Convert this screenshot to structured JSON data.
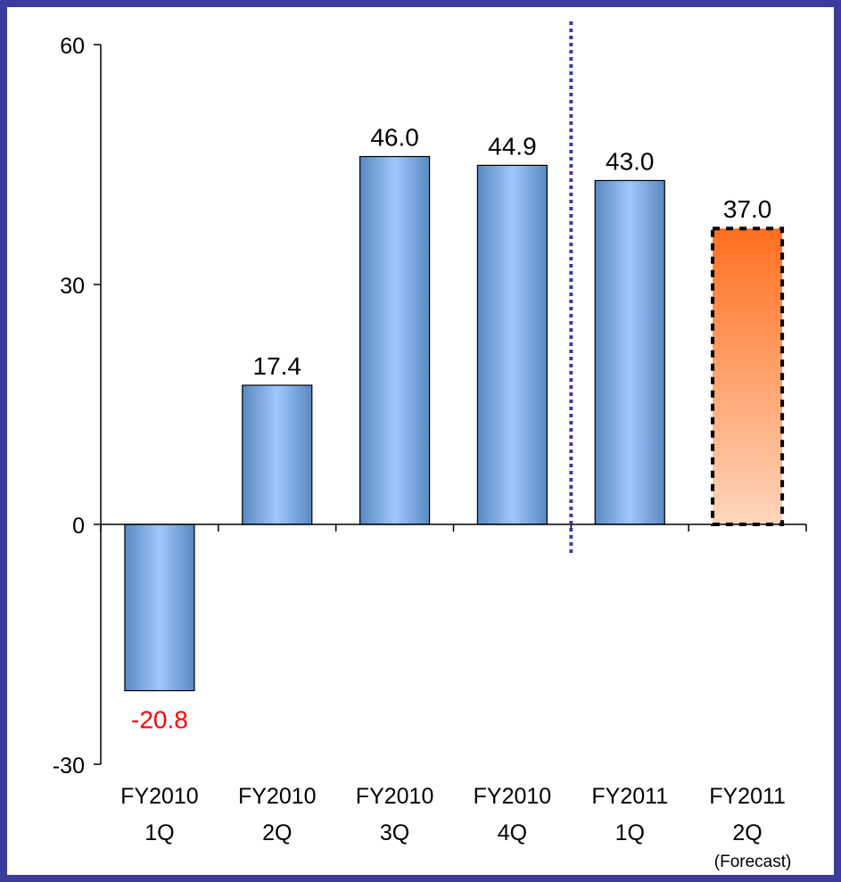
{
  "chart_data": {
    "type": "bar",
    "categories": [
      [
        "FY2010",
        "1Q"
      ],
      [
        "FY2010",
        "2Q"
      ],
      [
        "FY2010",
        "3Q"
      ],
      [
        "FY2010",
        "4Q"
      ],
      [
        "FY2011",
        "1Q"
      ],
      [
        "FY2011",
        "2Q"
      ]
    ],
    "values": [
      -20.8,
      17.4,
      46.0,
      44.9,
      43.0,
      37.0
    ],
    "value_labels": [
      "-20.8",
      "17.4",
      "46.0",
      "44.9",
      "43.0",
      "37.0"
    ],
    "forecast_note": "(Forecast)",
    "forecast_index": 5,
    "ylim": [
      -30,
      60
    ],
    "yticks": [
      {
        "value": 60,
        "label": "60"
      },
      {
        "value": 30,
        "label": "30"
      },
      {
        "value": 0,
        "label": "0"
      },
      {
        "value": -30,
        "label": "-30"
      }
    ],
    "divider_after_index": 3,
    "title": "",
    "xlabel": "",
    "ylabel": "",
    "legend": "none",
    "grid": false
  },
  "colors": {
    "frame": "#3c3c9c",
    "bar_edge": "#5a88c0",
    "bar_center": "#9ec8ff",
    "forecast_top": "#ff6f1f",
    "forecast_bottom": "#ffd6bc",
    "negative_label": "#ff0000",
    "divider": "#3a3ab0"
  }
}
